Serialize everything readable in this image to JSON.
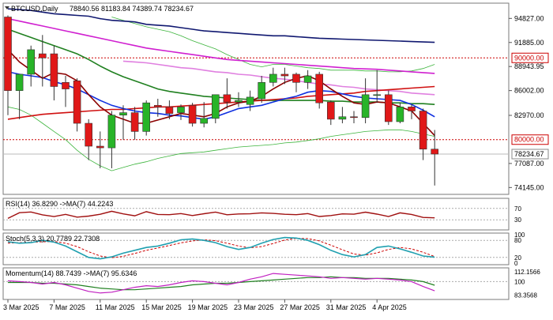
{
  "header": {
    "symbol": "BTCUSD,Daily",
    "ohlc": "78840.56 81183.84 74389.74 78234.67"
  },
  "colors": {
    "bull": "#28b428",
    "bear": "#e01818",
    "ma_red": "#d01010",
    "ma_darkred": "#8b0000",
    "ma_blue": "#1030e0",
    "ma_green": "#208020",
    "ma_magenta": "#d020d0",
    "ma_navy": "#101870",
    "ma_pink": "#e080e0",
    "bollinger": "#3cb43c",
    "label_bg": "#ffffff",
    "label_border": "#cc0000",
    "price_text": "#cc0000",
    "rsi_line": "#a01010",
    "stoch_main": "#20a0b0",
    "stoch_signal": "#cc0000",
    "mom_line": "#c020c0",
    "mom_signal": "#208020"
  },
  "main_panel": {
    "y_ticks": [
      "94827.00",
      "91885.00",
      "88943.95",
      "86002.00",
      "82970.00",
      "77087.00",
      "74145.00"
    ],
    "level_labels": [
      "90000.00",
      "80000.00"
    ],
    "current_price_label": "78234.67",
    "ylim": [
      73500,
      96500
    ]
  },
  "rsi_panel": {
    "label": "RSI(14) 36.8290 ->MA(7) 44.2243",
    "y_ticks": [
      "70",
      "30"
    ]
  },
  "stoch_panel": {
    "label": "Stoch(5,3,3) 20.7789 22.7308",
    "y_ticks": [
      "100",
      "80",
      "20",
      "0"
    ]
  },
  "mom_panel": {
    "label": "Momentum(14) 88.7439 ->MA(7) 95.6346",
    "y_ticks": [
      "112.1566",
      "100",
      "83.3568"
    ]
  },
  "x_axis": {
    "labels": [
      "3 Mar 2025",
      "7 Mar 2025",
      "11 Mar 2025",
      "15 Mar 2025",
      "19 Mar 2025",
      "23 Mar 2025",
      "27 Mar 2025",
      "31 Mar 2025",
      "4 Apr 2025"
    ]
  },
  "chart_data": {
    "type": "candlestick",
    "title": "BTCUSD,Daily",
    "candles": [
      {
        "o": 95000,
        "h": 95200,
        "l": 83000,
        "c": 86000
      },
      {
        "o": 86000,
        "h": 88000,
        "l": 82500,
        "c": 88000
      },
      {
        "o": 88000,
        "h": 91500,
        "l": 86500,
        "c": 91000
      },
      {
        "o": 90500,
        "h": 92800,
        "l": 86500,
        "c": 90000
      },
      {
        "o": 90500,
        "h": 91500,
        "l": 84800,
        "c": 86500
      },
      {
        "o": 87000,
        "h": 87800,
        "l": 84000,
        "c": 86200
      },
      {
        "o": 87200,
        "h": 87500,
        "l": 81000,
        "c": 82000
      },
      {
        "o": 82000,
        "h": 82500,
        "l": 77500,
        "c": 79200
      },
      {
        "o": 79200,
        "h": 81000,
        "l": 76500,
        "c": 79000
      },
      {
        "o": 79000,
        "h": 83500,
        "l": 76500,
        "c": 83000
      },
      {
        "o": 83000,
        "h": 84200,
        "l": 80000,
        "c": 83300
      },
      {
        "o": 83300,
        "h": 84000,
        "l": 80000,
        "c": 81000
      },
      {
        "o": 81000,
        "h": 84800,
        "l": 80500,
        "c": 84500
      },
      {
        "o": 84200,
        "h": 85000,
        "l": 82800,
        "c": 84000
      },
      {
        "o": 84000,
        "h": 84800,
        "l": 82500,
        "c": 83200
      },
      {
        "o": 83300,
        "h": 84300,
        "l": 82400,
        "c": 84000
      },
      {
        "o": 84200,
        "h": 84500,
        "l": 81600,
        "c": 82000
      },
      {
        "o": 82000,
        "h": 84600,
        "l": 81500,
        "c": 82600
      },
      {
        "o": 82600,
        "h": 85500,
        "l": 82000,
        "c": 85500
      },
      {
        "o": 85500,
        "h": 87500,
        "l": 83800,
        "c": 84600
      },
      {
        "o": 84600,
        "h": 85800,
        "l": 84000,
        "c": 84800
      },
      {
        "o": 84300,
        "h": 86000,
        "l": 83500,
        "c": 85200
      },
      {
        "o": 85000,
        "h": 87800,
        "l": 84500,
        "c": 87000
      },
      {
        "o": 87000,
        "h": 88800,
        "l": 86500,
        "c": 88000
      },
      {
        "o": 88000,
        "h": 88800,
        "l": 86800,
        "c": 87800
      },
      {
        "o": 88000,
        "h": 88200,
        "l": 85800,
        "c": 87000
      },
      {
        "o": 87000,
        "h": 88500,
        "l": 86200,
        "c": 87800
      },
      {
        "o": 88000,
        "h": 88300,
        "l": 83800,
        "c": 84500
      },
      {
        "o": 84600,
        "h": 84800,
        "l": 81800,
        "c": 82500
      },
      {
        "o": 82500,
        "h": 84000,
        "l": 82000,
        "c": 82800
      },
      {
        "o": 82800,
        "h": 83500,
        "l": 82000,
        "c": 82700
      },
      {
        "o": 82700,
        "h": 87500,
        "l": 82000,
        "c": 85500
      },
      {
        "o": 85500,
        "h": 88500,
        "l": 84500,
        "c": 85500
      },
      {
        "o": 85500,
        "h": 86000,
        "l": 81800,
        "c": 82200
      },
      {
        "o": 82200,
        "h": 84500,
        "l": 82000,
        "c": 84000
      },
      {
        "o": 84000,
        "h": 84300,
        "l": 82500,
        "c": 83500
      },
      {
        "o": 83500,
        "h": 83800,
        "l": 77500,
        "c": 78840
      },
      {
        "o": 78840,
        "h": 81184,
        "l": 74390,
        "c": 78235
      }
    ],
    "ma_lines": {
      "navy": [
        96000,
        95900,
        95800,
        95600,
        95400,
        95300,
        95200,
        95100,
        94800,
        94600,
        94500,
        94400,
        94100,
        94000,
        93900,
        93700,
        93500,
        93300,
        93200,
        93100,
        93000,
        92900,
        92800,
        92700,
        92700,
        92600,
        92500,
        92400,
        92350,
        92300,
        92250,
        92200,
        92150,
        92100,
        92050,
        92000,
        91950,
        91900
      ],
      "magenta": [
        94800,
        94500,
        94200,
        93900,
        93600,
        93300,
        93000,
        92700,
        92400,
        92100,
        91800,
        91500,
        91200,
        91000,
        90800,
        90600,
        90400,
        90200,
        90000,
        89800,
        89700,
        89600,
        89500,
        89400,
        89300,
        89200,
        89100,
        89000,
        88900,
        88800,
        88700,
        88650,
        88600,
        88500,
        88400,
        88300,
        88200,
        88100
      ],
      "pink": [
        null,
        null,
        null,
        null,
        null,
        null,
        null,
        null,
        null,
        null,
        89600,
        89500,
        89400,
        89200,
        89000,
        88800,
        88700,
        88500,
        88300,
        88200,
        88000,
        87900,
        87700,
        87500,
        87400,
        87200,
        87000,
        86800,
        86700,
        86500,
        86400,
        86200,
        86100,
        86000,
        85900,
        85700,
        85600,
        85500
      ],
      "green": [
        93500,
        93000,
        92500,
        92000,
        91500,
        91000,
        90500,
        89800,
        89000,
        88300,
        87700,
        87200,
        86700,
        86200,
        85900,
        85700,
        85500,
        85300,
        85200,
        85100,
        85000,
        84900,
        84800,
        84800,
        84800,
        84800,
        84800,
        84800,
        84700,
        84700,
        84600,
        84600,
        84600,
        84500,
        84500,
        84400,
        84400,
        84300
      ],
      "red": [
        82500,
        82700,
        82900,
        83100,
        83200,
        83300,
        83400,
        83500,
        83600,
        83700,
        83700,
        83800,
        83900,
        84000,
        84000,
        84100,
        84200,
        84300,
        84400,
        84500,
        84600,
        84700,
        84800,
        84900,
        85000,
        85100,
        85300,
        85400,
        85500,
        85600,
        85700,
        85900,
        86000,
        86100,
        86200,
        86300,
        86400,
        86500
      ],
      "blue": [
        88300,
        88000,
        87800,
        87600,
        87100,
        86700,
        86200,
        85500,
        84800,
        84200,
        83800,
        83500,
        83300,
        83200,
        83000,
        82900,
        82700,
        82500,
        82800,
        83300,
        83800,
        84000,
        84200,
        84600,
        85000,
        85300,
        85800,
        86000,
        85900,
        85600,
        85300,
        85100,
        85000,
        84900,
        84800,
        84300,
        83600,
        82800
      ],
      "darkred": [
        91000,
        89500,
        88500,
        87500,
        88200,
        88000,
        87200,
        85500,
        84000,
        83000,
        82500,
        82000,
        82000,
        82400,
        82800,
        83200,
        83000,
        82800,
        83200,
        84000,
        84500,
        84700,
        85300,
        86200,
        87000,
        87500,
        87800,
        87200,
        86200,
        85300,
        84500,
        84300,
        84600,
        84500,
        84000,
        83500,
        82000,
        80500
      ]
    },
    "bollinger_upper": [
      null,
      null,
      null,
      null,
      null,
      null,
      null,
      null,
      null,
      95000,
      94600,
      94200,
      93800,
      93500,
      93200,
      92700,
      92100,
      91600,
      91100,
      90400,
      89800,
      89200,
      88900,
      89200,
      89200,
      89000,
      88800,
      88700,
      88500,
      88500,
      88500,
      88400,
      88400,
      88300,
      88300,
      88400,
      88700,
      89200
    ],
    "bollinger_lower": [
      84000,
      83700,
      83000,
      82000,
      81000,
      80000,
      78700,
      77600,
      76800,
      76200,
      76600,
      77000,
      77300,
      77700,
      78000,
      78300,
      78400,
      78500,
      78700,
      78900,
      79100,
      79200,
      79300,
      79400,
      79600,
      79700,
      79900,
      80100,
      80400,
      80600,
      80800,
      81000,
      81100,
      81200,
      81200,
      81000,
      80700,
      80400
    ],
    "rsi": {
      "label": "RSI(14)",
      "value": 36.829,
      "ma_label": "MA(7)",
      "ma_value": 44.2243,
      "levels": [
        70,
        30
      ]
    },
    "stoch": {
      "label": "Stoch(5,3,3)",
      "main_value": 20.7789,
      "signal_value": 22.7308,
      "main": [
        75,
        70,
        72,
        80,
        74,
        60,
        40,
        20,
        15,
        22,
        35,
        45,
        55,
        60,
        70,
        82,
        85,
        80,
        72,
        58,
        48,
        55,
        70,
        83,
        90,
        88,
        80,
        65,
        45,
        30,
        22,
        30,
        55,
        60,
        50,
        38,
        25,
        21
      ],
      "signal": [
        70,
        72,
        73,
        75,
        76,
        70,
        58,
        40,
        25,
        19,
        24,
        34,
        45,
        53,
        62,
        71,
        78,
        82,
        79,
        70,
        60,
        54,
        58,
        69,
        81,
        87,
        86,
        78,
        63,
        47,
        32,
        28,
        36,
        48,
        55,
        50,
        38,
        23
      ]
    },
    "momentum": {
      "label": "Momentum(14)",
      "value": 88.7439,
      "ma_label": "MA(7)",
      "ma_value": 95.6346,
      "main": [
        101,
        100,
        99,
        97,
        99,
        96,
        92,
        88,
        86,
        87,
        90,
        93,
        95,
        94,
        96,
        99,
        101,
        100,
        98,
        96,
        99,
        103,
        106,
        110,
        109,
        108,
        107,
        106,
        104,
        105,
        104,
        103,
        104,
        103,
        102,
        100,
        94,
        88.7
      ],
      "signal": [
        99,
        99,
        99,
        98,
        98,
        97,
        96,
        94,
        92,
        91,
        90,
        90,
        91,
        92,
        93,
        94,
        96,
        97,
        98,
        98,
        99,
        100,
        101,
        102,
        103,
        104,
        105,
        105,
        106,
        105,
        105,
        104,
        104,
        104,
        103,
        102,
        100,
        95.6
      ]
    },
    "x_tick_labels": [
      "3 Mar 2025",
      "7 Mar 2025",
      "11 Mar 2025",
      "15 Mar 2025",
      "19 Mar 2025",
      "23 Mar 2025",
      "27 Mar 2025",
      "31 Mar 2025",
      "4 Apr 2025"
    ],
    "horizontal_levels": [
      90000,
      80000
    ]
  }
}
